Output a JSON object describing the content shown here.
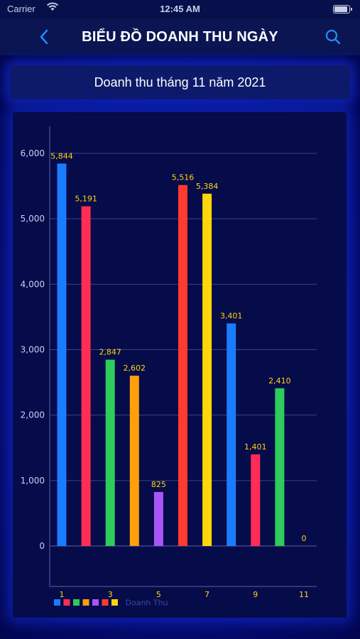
{
  "status_bar": {
    "carrier": "Carrier",
    "time": "12:45 AM",
    "wifi_icon": "wifi-icon",
    "battery_icon": "battery-icon"
  },
  "nav": {
    "title": "BIỂU ĐỒ DOANH THU NGÀY",
    "back_icon": "chevron-left-icon",
    "search_icon": "search-icon"
  },
  "subtitle": "Doanh thu tháng 11 năm 2021",
  "chart_data": {
    "type": "bar",
    "categories": [
      "1",
      "2",
      "3",
      "4",
      "5",
      "6",
      "7",
      "8",
      "9",
      "10",
      "11"
    ],
    "values": [
      5844,
      5191,
      2847,
      2602,
      825,
      5516,
      5384,
      3401,
      1401,
      2410,
      0
    ],
    "data_labels": [
      "5,844",
      "5,191",
      "2,847",
      "2,602",
      "825",
      "5,516",
      "5,384",
      "3,401",
      "1,401",
      "2,410",
      "0"
    ],
    "x_tick_labels": [
      "1",
      "3",
      "5",
      "7",
      "9",
      "11"
    ],
    "y_tick_labels": [
      "0",
      "1,000",
      "2,000",
      "3,000",
      "4,000",
      "5,000",
      "6,000"
    ],
    "y_ticks": [
      0,
      1000,
      2000,
      3000,
      4000,
      5000,
      6000
    ],
    "ylim": [
      0,
      6000
    ],
    "grid": true,
    "legend": "bottom-left",
    "legend_text": "Doanh Thu",
    "colors": [
      "#1a7cff",
      "#ff2d55",
      "#2ecc5a",
      "#ff9f0a",
      "#a855f7",
      "#ff3b30",
      "#ffd60a",
      "#1a7cff",
      "#ff2d55",
      "#2ecc5a",
      "#ffd60a"
    ],
    "label_color": "#ffd60a",
    "axis_label_color": "#c9d0f0"
  }
}
